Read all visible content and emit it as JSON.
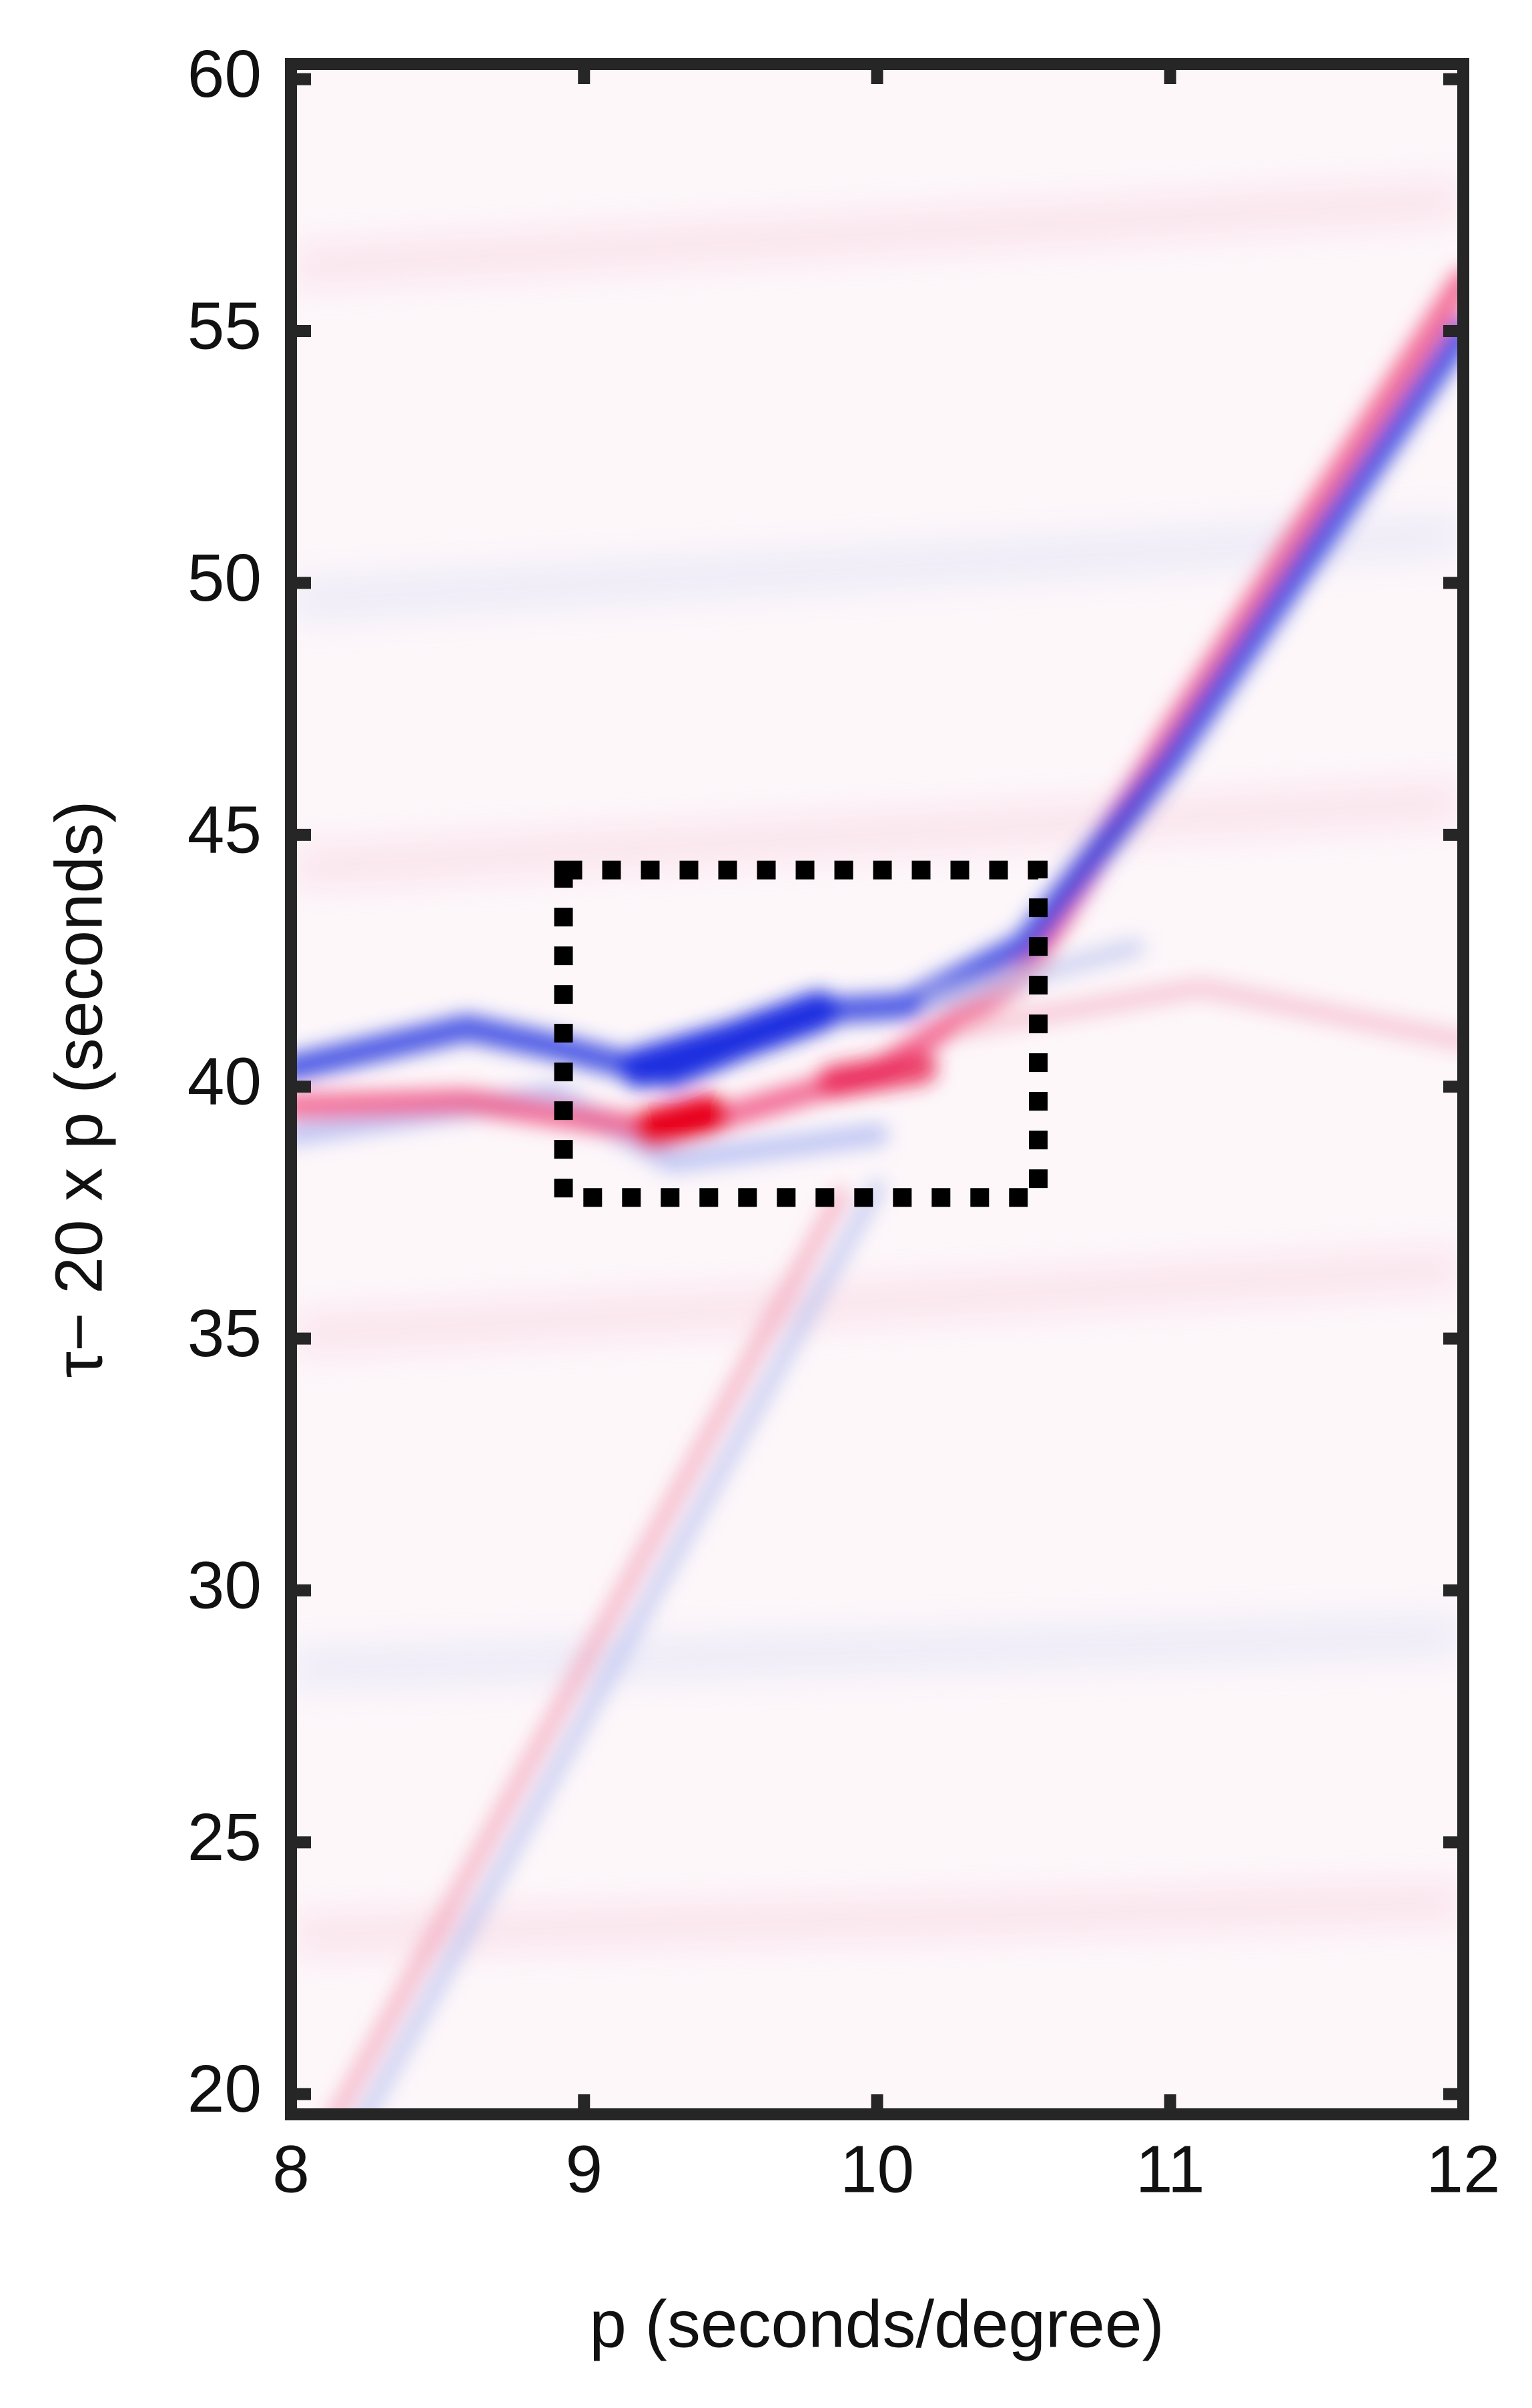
{
  "chart_data": {
    "type": "image",
    "xlabel": "p (seconds/degree)",
    "ylabel": "τ− 20 x p (seconds)",
    "xlim": [
      8,
      12
    ],
    "ylim": [
      19.6,
      60.3
    ],
    "xticks": [
      8,
      9,
      10,
      11,
      12
    ],
    "yticks": [
      20,
      25,
      30,
      35,
      40,
      45,
      50,
      55,
      60
    ],
    "box": {
      "x": [
        8.93,
        10.55
      ],
      "y": [
        37.8,
        44.3
      ],
      "color": "#000000"
    }
  }
}
